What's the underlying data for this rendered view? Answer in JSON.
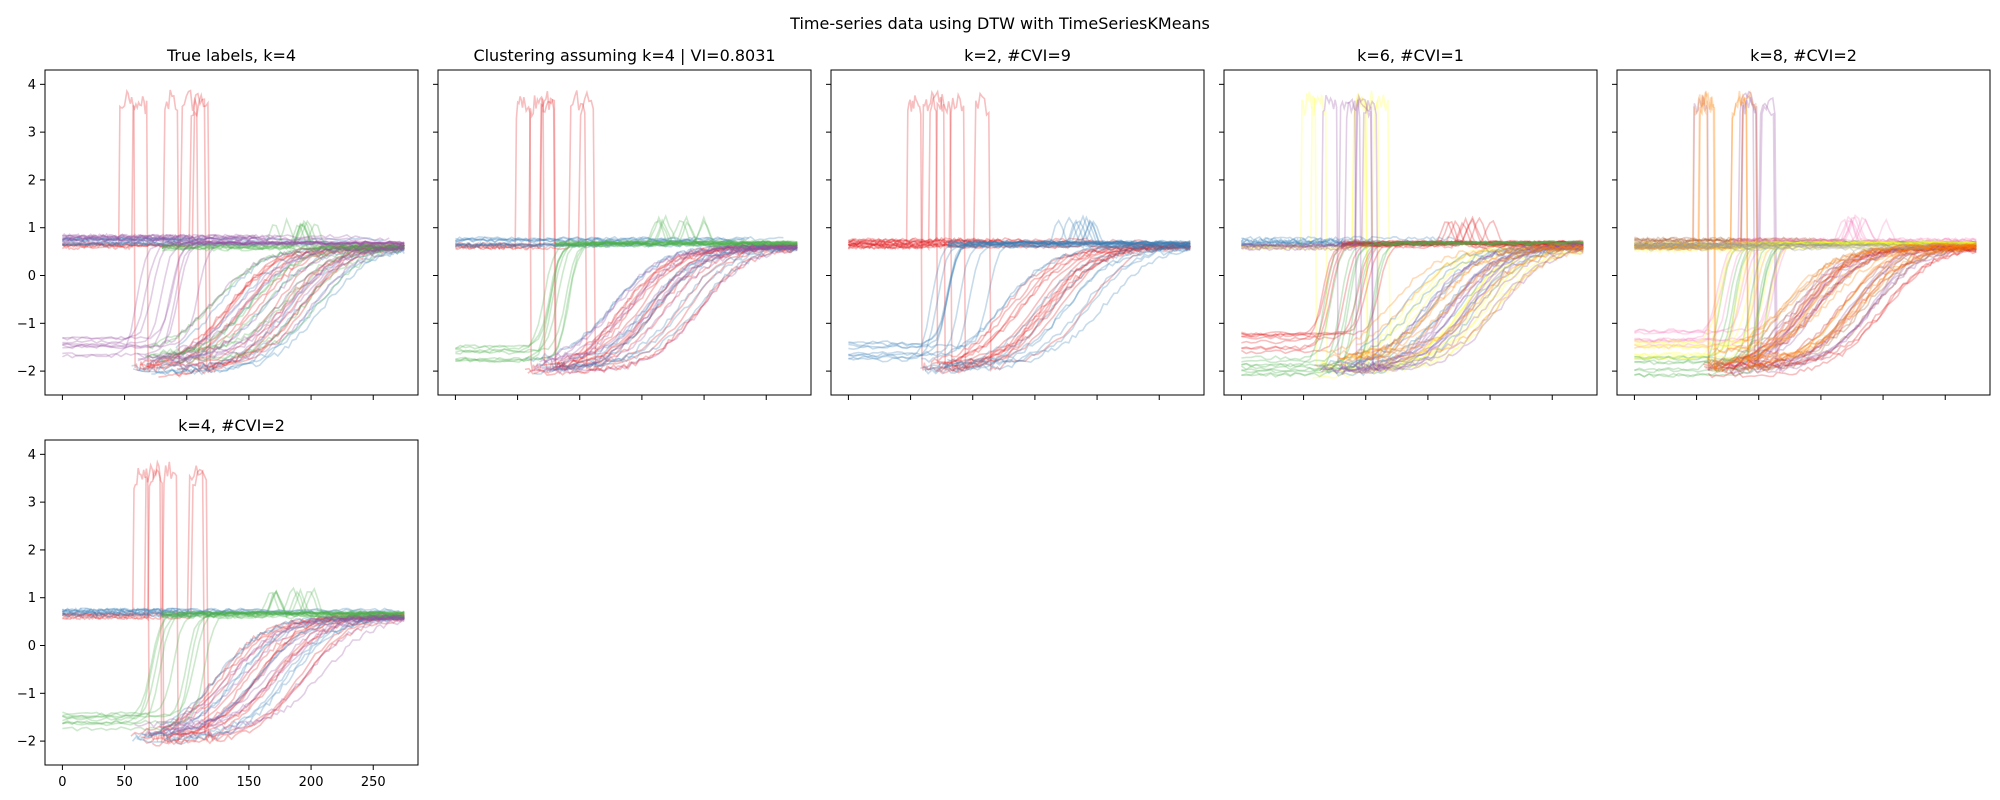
{
  "figure": {
    "suptitle": "Time-series data using DTW with TimeSeriesKMeans"
  },
  "palette": {
    "red": "#e41a1c",
    "blue": "#377eb8",
    "green": "#4daf4a",
    "purple": "#984ea3",
    "orange": "#ff7f00",
    "yellow": "#ffff33",
    "brown": "#a65628",
    "pink": "#f781bf",
    "gray": "#999999"
  },
  "chart_data": [
    {
      "type": "line",
      "title": "True labels, k=4",
      "xlim": [
        -14,
        286
      ],
      "ylim": [
        -2.5,
        4.3
      ],
      "xticks": [
        0,
        50,
        100,
        150,
        200,
        250
      ],
      "yticks": [
        -2,
        -1,
        0,
        1,
        2,
        3,
        4
      ],
      "show_xtick_labels": false,
      "show_ytick_labels": true,
      "series": [
        {
          "color": "red",
          "values": [
            [
              "spike",
              0.62
            ],
            [
              "sigmoid",
              -2.0
            ]
          ]
        },
        {
          "color": "blue",
          "values": [
            [
              "flat",
              0.7
            ],
            [
              "sigmoid",
              -1.95
            ]
          ]
        },
        {
          "color": "green",
          "values": [
            [
              "bump",
              0.6
            ],
            [
              "sigmoid",
              -1.7
            ]
          ]
        },
        {
          "color": "purple",
          "values": [
            [
              "rise",
              -1.5
            ],
            [
              "flat",
              0.75
            ],
            [
              "sigmoid",
              -1.8
            ]
          ]
        }
      ]
    },
    {
      "type": "line",
      "title": "Clustering assuming k=4 | VI=0.8031",
      "xlim": [
        -14,
        286
      ],
      "ylim": [
        -2.5,
        4.3
      ],
      "xticks": [
        0,
        50,
        100,
        150,
        200,
        250
      ],
      "yticks": [
        -2,
        -1,
        0,
        1,
        2,
        3,
        4
      ],
      "show_xtick_labels": false,
      "show_ytick_labels": false,
      "series": [
        {
          "color": "red",
          "values": [
            [
              "spike",
              0.62
            ],
            [
              "sigmoid",
              -2.0
            ]
          ]
        },
        {
          "color": "blue",
          "values": [
            [
              "flat",
              0.7
            ],
            [
              "sigmoid",
              -1.95
            ]
          ]
        },
        {
          "color": "green",
          "values": [
            [
              "rise",
              -1.6
            ],
            [
              "bump",
              0.65
            ]
          ]
        },
        {
          "color": "purple",
          "values": [
            [
              "sigmoid",
              -1.9
            ]
          ]
        }
      ]
    },
    {
      "type": "line",
      "title": "k=2, #CVI=9",
      "xlim": [
        -14,
        286
      ],
      "ylim": [
        -2.5,
        4.3
      ],
      "xticks": [
        0,
        50,
        100,
        150,
        200,
        250
      ],
      "yticks": [
        -2,
        -1,
        0,
        1,
        2,
        3,
        4
      ],
      "show_xtick_labels": false,
      "show_ytick_labels": false,
      "series": [
        {
          "color": "red",
          "values": [
            [
              "spike",
              0.62
            ],
            [
              "flat",
              0.68
            ],
            [
              "sigmoid",
              -2.0
            ]
          ]
        },
        {
          "color": "blue",
          "values": [
            [
              "rise",
              -1.6
            ],
            [
              "bump",
              0.65
            ],
            [
              "sigmoid",
              -1.9
            ]
          ]
        }
      ]
    },
    {
      "type": "line",
      "title": "k=6, #CVI=1",
      "xlim": [
        -14,
        286
      ],
      "ylim": [
        -2.5,
        4.3
      ],
      "xticks": [
        0,
        50,
        100,
        150,
        200,
        250
      ],
      "yticks": [
        -2,
        -1,
        0,
        1,
        2,
        3,
        4
      ],
      "show_xtick_labels": false,
      "show_ytick_labels": false,
      "series": [
        {
          "color": "yellow",
          "values": [
            [
              "spike",
              0.6
            ],
            [
              "sigmoid",
              -2.0
            ]
          ]
        },
        {
          "color": "blue",
          "values": [
            [
              "flat",
              0.7
            ],
            [
              "sigmoid",
              -1.95
            ]
          ]
        },
        {
          "color": "red",
          "values": [
            [
              "rise",
              -1.4
            ],
            [
              "bump",
              0.65
            ]
          ]
        },
        {
          "color": "green",
          "values": [
            [
              "rise",
              -1.9
            ]
          ]
        },
        {
          "color": "purple",
          "values": [
            [
              "spike",
              0.6
            ],
            [
              "sigmoid",
              -2.0
            ]
          ]
        },
        {
          "color": "orange",
          "values": [
            [
              "sigmoid",
              -1.7
            ]
          ]
        }
      ]
    },
    {
      "type": "line",
      "title": "k=8, #CVI=2",
      "xlim": [
        -14,
        286
      ],
      "ylim": [
        -2.5,
        4.3
      ],
      "xticks": [
        0,
        50,
        100,
        150,
        200,
        250
      ],
      "yticks": [
        -2,
        -1,
        0,
        1,
        2,
        3,
        4
      ],
      "show_xtick_labels": false,
      "show_ytick_labels": false,
      "series": [
        {
          "color": "purple",
          "values": [
            [
              "spike",
              0.62
            ],
            [
              "sigmoid",
              -2.0
            ]
          ]
        },
        {
          "color": "brown",
          "values": [
            [
              "flat",
              0.72
            ],
            [
              "sigmoid",
              -1.9
            ]
          ]
        },
        {
          "color": "pink",
          "values": [
            [
              "rise",
              -1.35
            ],
            [
              "bump",
              0.7
            ]
          ]
        },
        {
          "color": "green",
          "values": [
            [
              "rise",
              -1.9
            ]
          ]
        },
        {
          "color": "yellow",
          "values": [
            [
              "rise",
              -1.55
            ],
            [
              "flat",
              0.6
            ]
          ]
        },
        {
          "color": "red",
          "values": [
            [
              "sigmoid",
              -2.0
            ]
          ]
        },
        {
          "color": "orange",
          "values": [
            [
              "spike",
              0.6
            ],
            [
              "sigmoid",
              -1.7
            ]
          ]
        },
        {
          "color": "gray",
          "values": [
            [
              "flat",
              0.62
            ]
          ]
        }
      ]
    },
    {
      "type": "line",
      "title": "k=4, #CVI=2",
      "xlim": [
        -14,
        286
      ],
      "ylim": [
        -2.5,
        4.3
      ],
      "xticks": [
        0,
        50,
        100,
        150,
        200,
        250
      ],
      "yticks": [
        -2,
        -1,
        0,
        1,
        2,
        3,
        4
      ],
      "show_xtick_labels": true,
      "show_ytick_labels": true,
      "series": [
        {
          "color": "red",
          "values": [
            [
              "spike",
              0.62
            ],
            [
              "sigmoid",
              -2.0
            ]
          ]
        },
        {
          "color": "blue",
          "values": [
            [
              "flat",
              0.7
            ],
            [
              "sigmoid",
              -1.95
            ]
          ]
        },
        {
          "color": "green",
          "values": [
            [
              "rise",
              -1.6
            ],
            [
              "bump",
              0.65
            ]
          ]
        },
        {
          "color": "purple",
          "values": [
            [
              "sigmoid",
              -1.8
            ]
          ]
        }
      ]
    }
  ]
}
